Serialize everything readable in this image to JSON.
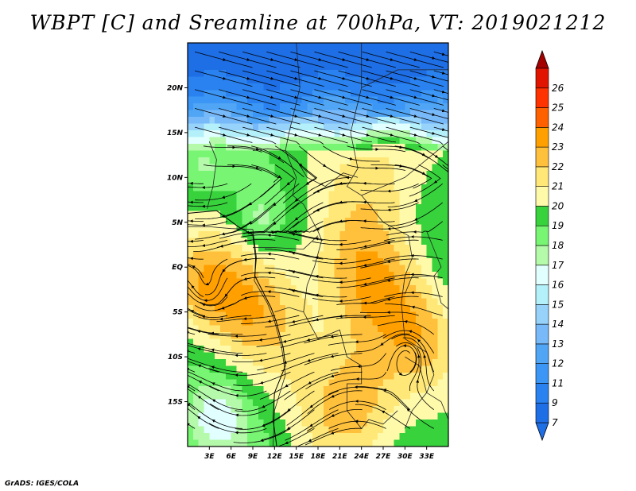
{
  "title": "WBPT [C] and Sreamline at 700hPa, VT: 2019021212",
  "footer": "GrADS: IGES/COLA",
  "map": {
    "lon_range": [
      0,
      36
    ],
    "lat_range": [
      -20,
      25
    ],
    "lat_ticks": [
      {
        "value": 20,
        "label": "20N"
      },
      {
        "value": 15,
        "label": "15N"
      },
      {
        "value": 10,
        "label": "10N"
      },
      {
        "value": 5,
        "label": "5N"
      },
      {
        "value": 0,
        "label": "EQ"
      },
      {
        "value": -5,
        "label": "5S"
      },
      {
        "value": -10,
        "label": "10S"
      },
      {
        "value": -15,
        "label": "15S"
      }
    ],
    "lon_ticks": [
      {
        "value": 3,
        "label": "3E"
      },
      {
        "value": 6,
        "label": "6E"
      },
      {
        "value": 9,
        "label": "9E"
      },
      {
        "value": 12,
        "label": "12E"
      },
      {
        "value": 15,
        "label": "15E"
      },
      {
        "value": 18,
        "label": "18E"
      },
      {
        "value": 21,
        "label": "21E"
      },
      {
        "value": 24,
        "label": "24E"
      },
      {
        "value": 27,
        "label": "27E"
      },
      {
        "value": 30,
        "label": "30E"
      },
      {
        "value": 33,
        "label": "33E"
      }
    ]
  },
  "colorbar": {
    "levels": [
      {
        "label": "7",
        "color": "#1e6ee6"
      },
      {
        "label": "9",
        "color": "#2a82f0"
      },
      {
        "label": "11",
        "color": "#3c96f5"
      },
      {
        "label": "12",
        "color": "#50a5f5"
      },
      {
        "label": "13",
        "color": "#78b9fa"
      },
      {
        "label": "14",
        "color": "#96d2fa"
      },
      {
        "label": "15",
        "color": "#b4f0fa"
      },
      {
        "label": "16",
        "color": "#e1ffff"
      },
      {
        "label": "17",
        "color": "#b4faaa"
      },
      {
        "label": "18",
        "color": "#78f573"
      },
      {
        "label": "19",
        "color": "#37d23c"
      },
      {
        "label": "20",
        "color": "#fffaaa"
      },
      {
        "label": "21",
        "color": "#ffe878"
      },
      {
        "label": "22",
        "color": "#ffc03c"
      },
      {
        "label": "23",
        "color": "#ffa000"
      },
      {
        "label": "24",
        "color": "#ff6000"
      },
      {
        "label": "25",
        "color": "#ff3200"
      },
      {
        "label": "26",
        "color": "#e11400"
      }
    ],
    "top_color": "#a50000"
  }
}
